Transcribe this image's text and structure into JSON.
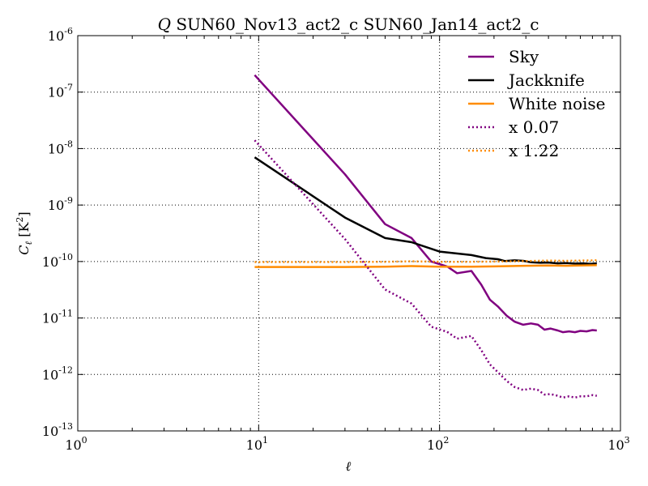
{
  "chart_data": {
    "type": "line",
    "title_parts": {
      "var": "Q",
      "rest": " SUN60_Nov13_act2_c SUN60_Jan14_act2_c"
    },
    "title": "Q SUN60_Nov13_act2_c SUN60_Jan14_act2_c",
    "xlabel": "ℓ",
    "ylabel": "C_ℓ [K²]",
    "ylabel_parts": {
      "base": "C",
      "sub": "ℓ",
      "unit_open": " [K",
      "unit_sup": "2",
      "unit_close": "]"
    },
    "x_scale": "log",
    "y_scale": "log",
    "xlim": [
      1,
      1000
    ],
    "ylim": [
      1e-13,
      1e-06
    ],
    "grid": true,
    "x_ticks": [
      {
        "value": 1,
        "base": "10",
        "exp": "0"
      },
      {
        "value": 10,
        "base": "10",
        "exp": "1"
      },
      {
        "value": 100,
        "base": "10",
        "exp": "2"
      },
      {
        "value": 1000,
        "base": "10",
        "exp": "3"
      }
    ],
    "y_ticks": [
      {
        "value": 1e-13,
        "base": "10",
        "exp": "-13"
      },
      {
        "value": 1e-12,
        "base": "10",
        "exp": "-12"
      },
      {
        "value": 1e-11,
        "base": "10",
        "exp": "-11"
      },
      {
        "value": 1e-10,
        "base": "10",
        "exp": "-10"
      },
      {
        "value": 1e-09,
        "base": "10",
        "exp": "-9"
      },
      {
        "value": 1e-08,
        "base": "10",
        "exp": "-8"
      },
      {
        "value": 1e-07,
        "base": "10",
        "exp": "-7"
      },
      {
        "value": 1e-06,
        "base": "10",
        "exp": "-6"
      }
    ],
    "legend_position": "top-right",
    "series": [
      {
        "name": "Sky",
        "color": "#800080",
        "style": "solid",
        "points": [
          [
            9.5,
            2e-07
          ],
          [
            30,
            3.5e-09
          ],
          [
            50,
            4.6e-10
          ],
          [
            70,
            2.6e-10
          ],
          [
            90,
            1e-10
          ],
          [
            110,
            8.2e-11
          ],
          [
            125,
            6.2e-11
          ],
          [
            150,
            6.8e-11
          ],
          [
            170,
            3.9e-11
          ],
          [
            190,
            2.1e-11
          ],
          [
            210,
            1.6e-11
          ],
          [
            235,
            1.1e-11
          ],
          [
            260,
            8.6e-12
          ],
          [
            290,
            7.6e-12
          ],
          [
            320,
            8e-12
          ],
          [
            350,
            7.6e-12
          ],
          [
            380,
            6.2e-12
          ],
          [
            410,
            6.5e-12
          ],
          [
            450,
            6e-12
          ],
          [
            480,
            5.6e-12
          ],
          [
            520,
            5.8e-12
          ],
          [
            560,
            5.6e-12
          ],
          [
            600,
            5.9e-12
          ],
          [
            650,
            5.8e-12
          ],
          [
            700,
            6.1e-12
          ],
          [
            740,
            6e-12
          ]
        ]
      },
      {
        "name": "Jackknife",
        "color": "#000000",
        "style": "solid",
        "points": [
          [
            9.5,
            7e-09
          ],
          [
            30,
            6e-10
          ],
          [
            50,
            2.6e-10
          ],
          [
            70,
            2.2e-10
          ],
          [
            100,
            1.5e-10
          ],
          [
            150,
            1.3e-10
          ],
          [
            180,
            1.15e-10
          ],
          [
            210,
            1.1e-10
          ],
          [
            230,
            1.02e-10
          ],
          [
            260,
            1.05e-10
          ],
          [
            290,
            1.03e-10
          ],
          [
            320,
            9.7e-11
          ],
          [
            360,
            9.5e-11
          ],
          [
            400,
            9.6e-11
          ],
          [
            450,
            9.3e-11
          ],
          [
            500,
            9.4e-11
          ],
          [
            560,
            9.2e-11
          ],
          [
            620,
            9.3e-11
          ],
          [
            680,
            9.1e-11
          ],
          [
            740,
            9.3e-11
          ]
        ]
      },
      {
        "name": "White noise",
        "color": "#ff8c00",
        "style": "solid",
        "points": [
          [
            9.5,
            8e-11
          ],
          [
            30,
            8e-11
          ],
          [
            50,
            8.1e-11
          ],
          [
            70,
            8.3e-11
          ],
          [
            100,
            8.1e-11
          ],
          [
            150,
            8.1e-11
          ],
          [
            200,
            8.2e-11
          ],
          [
            300,
            8.4e-11
          ],
          [
            400,
            8.5e-11
          ],
          [
            500,
            8.4e-11
          ],
          [
            600,
            8.5e-11
          ],
          [
            740,
            8.6e-11
          ]
        ]
      },
      {
        "name": "x 0.07",
        "color": "#800080",
        "style": "dotted",
        "points": [
          [
            9.5,
            1.4e-08
          ],
          [
            30,
            2.5e-10
          ],
          [
            50,
            3.2e-11
          ],
          [
            70,
            1.8e-11
          ],
          [
            90,
            7e-12
          ],
          [
            110,
            5.7e-12
          ],
          [
            125,
            4.3e-12
          ],
          [
            150,
            4.8e-12
          ],
          [
            170,
            2.7e-12
          ],
          [
            190,
            1.5e-12
          ],
          [
            210,
            1.1e-12
          ],
          [
            235,
            7.7e-13
          ],
          [
            260,
            6e-13
          ],
          [
            290,
            5.3e-13
          ],
          [
            320,
            5.6e-13
          ],
          [
            350,
            5.3e-13
          ],
          [
            380,
            4.4e-13
          ],
          [
            410,
            4.5e-13
          ],
          [
            450,
            4.2e-13
          ],
          [
            480,
            3.9e-13
          ],
          [
            520,
            4.1e-13
          ],
          [
            560,
            3.9e-13
          ],
          [
            600,
            4.1e-13
          ],
          [
            650,
            4.1e-13
          ],
          [
            700,
            4.3e-13
          ],
          [
            740,
            4.2e-13
          ]
        ]
      },
      {
        "name": "x 1.22",
        "color": "#ff8c00",
        "style": "dotted",
        "points": [
          [
            9.5,
            9.8e-11
          ],
          [
            30,
            9.8e-11
          ],
          [
            50,
            9.9e-11
          ],
          [
            70,
            1.01e-10
          ],
          [
            100,
            9.9e-11
          ],
          [
            150,
            9.9e-11
          ],
          [
            200,
            1e-10
          ],
          [
            300,
            1.02e-10
          ],
          [
            400,
            1.04e-10
          ],
          [
            500,
            1.03e-10
          ],
          [
            600,
            1.04e-10
          ],
          [
            740,
            1.05e-10
          ]
        ]
      }
    ]
  }
}
